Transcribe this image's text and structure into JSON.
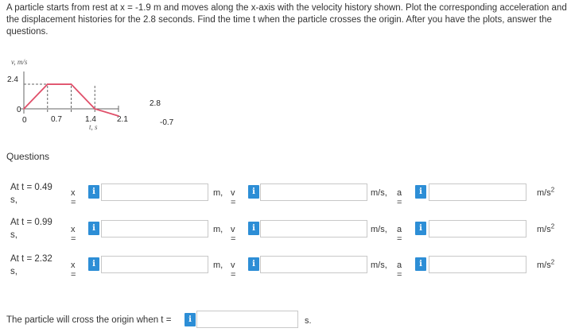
{
  "problem_text": "A particle starts from rest at x = -1.9 m and moves along the x-axis with the velocity history shown. Plot the corresponding acceleration and the displacement histories for the 2.8 seconds. Find the time t when the particle crosses the origin. After you have the plots, answer the questions.",
  "graph": {
    "v_axis_label": "v, m/s",
    "t_axis_label": "t, s",
    "v_tick_label": "2.4",
    "origin_label": "0",
    "origin_t_label": "0",
    "t_labels": [
      "0.7",
      "1.4",
      "2.1"
    ],
    "end_t_label": "2.8",
    "min_v_label": "-0.7",
    "line_color": "#e0506a"
  },
  "chart_data": {
    "type": "line",
    "x": [
      0,
      0.7,
      1.4,
      2.1,
      2.8
    ],
    "y": [
      0,
      2.4,
      2.4,
      0,
      -0.7
    ],
    "xlabel": "t, s",
    "ylabel": "v, m/s"
  },
  "questions_heading": "Questions",
  "questions": [
    {
      "label": "At t = 0.49 s,",
      "x_prefix": "x =",
      "x_unit": "m,",
      "v_prefix": "v =",
      "v_unit": "m/s,",
      "a_prefix": "a =",
      "a_unit_base": "m/s",
      "a_unit_sup": "2",
      "x_value": "",
      "v_value": "",
      "a_value": ""
    },
    {
      "label": "At t = 0.99 s,",
      "x_prefix": "x =",
      "x_unit": "m,",
      "v_prefix": "v =",
      "v_unit": "m/s,",
      "a_prefix": "a =",
      "a_unit_base": "m/s",
      "a_unit_sup": "2",
      "x_value": "",
      "v_value": "",
      "a_value": ""
    },
    {
      "label": "At t = 2.32 s,",
      "x_prefix": "x =",
      "x_unit": "m,",
      "v_prefix": "v =",
      "v_unit": "m/s,",
      "a_prefix": "a =",
      "a_unit_base": "m/s",
      "a_unit_sup": "2",
      "x_value": "",
      "v_value": "",
      "a_value": ""
    }
  ],
  "info_icon_glyph": "i",
  "cross": {
    "text": "The particle will cross the origin when t =",
    "unit": "s.",
    "value": ""
  },
  "colors": {
    "info_button": "#2d8ed6",
    "input_border": "#c8c8c8",
    "text": "#333333"
  }
}
